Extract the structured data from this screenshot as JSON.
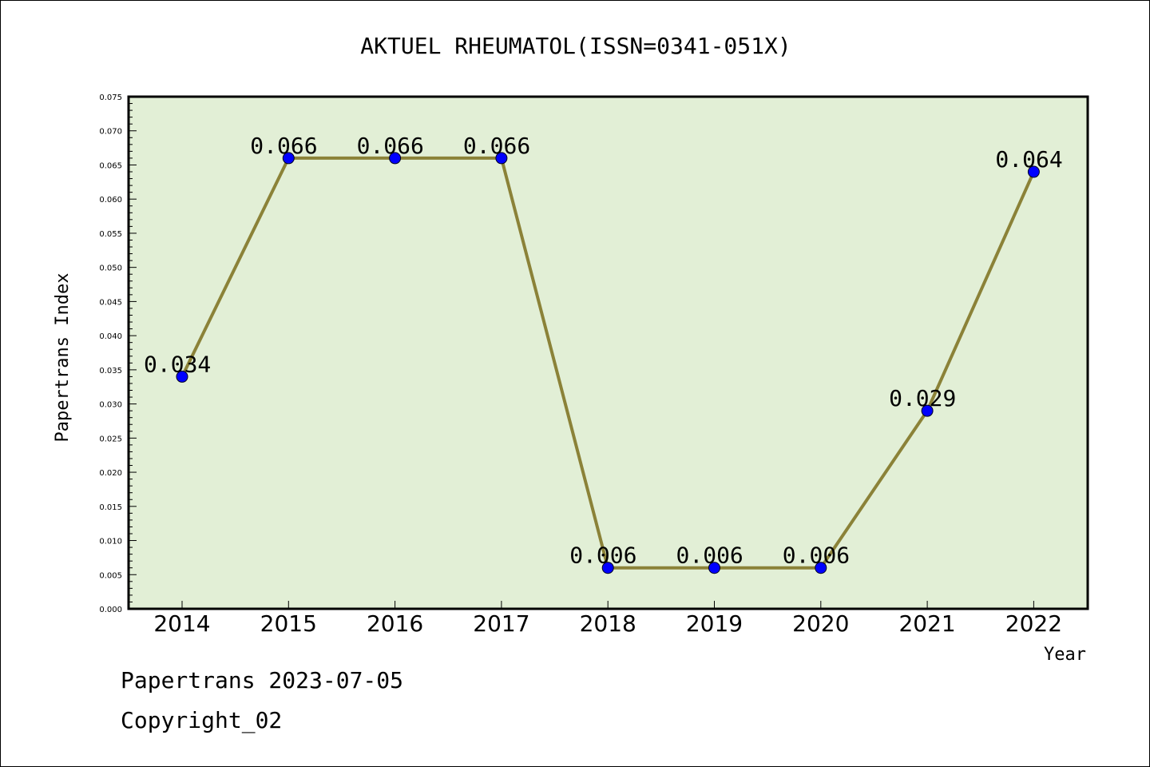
{
  "chart_data": {
    "type": "line",
    "title": "AKTUEL RHEUMATOL(ISSN=0341-051X)",
    "xlabel": "Year",
    "ylabel": "Papertrans Index",
    "categories": [
      "2014",
      "2015",
      "2016",
      "2017",
      "2018",
      "2019",
      "2020",
      "2021",
      "2022"
    ],
    "series": [
      {
        "values": [
          0.034,
          0.066,
          0.066,
          0.066,
          0.006,
          0.006,
          0.006,
          0.029,
          0.064
        ]
      }
    ],
    "data_labels": [
      "0.034",
      "0.066",
      "0.066",
      "0.066",
      "0.006",
      "0.006",
      "0.006",
      "0.029",
      "0.064"
    ],
    "ylim": [
      0,
      0.075
    ],
    "yticks": [
      "0.000",
      "0.005",
      "0.010",
      "0.015",
      "0.020",
      "0.025",
      "0.030",
      "0.035",
      "0.040",
      "0.045",
      "0.050",
      "0.055",
      "0.060",
      "0.065",
      "0.070",
      "0.075"
    ],
    "grid": false,
    "legend": "none",
    "colors": {
      "plot_background": "#e2efd6",
      "line": "#8b8238",
      "marker": "#0000ff"
    }
  },
  "footer": {
    "line1": "Papertrans 2023-07-05",
    "line2": "Copyright_02"
  }
}
